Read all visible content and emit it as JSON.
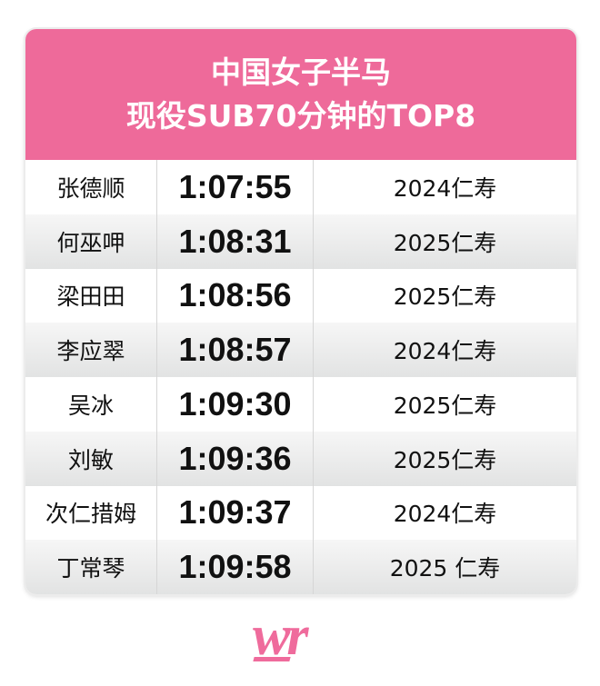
{
  "header": {
    "line1": "中国女子半马",
    "line2": "现役SUB70分钟的TOP8"
  },
  "rows": [
    {
      "name": "张德顺",
      "time": "1:07:55",
      "race": "2024仁寿"
    },
    {
      "name": "何巫呷",
      "time": "1:08:31",
      "race": "2025仁寿"
    },
    {
      "name": "梁田田",
      "time": "1:08:56",
      "race": "2025仁寿"
    },
    {
      "name": "李应翠",
      "time": "1:08:57",
      "race": "2024仁寿"
    },
    {
      "name": "吴冰",
      "time": "1:09:30",
      "race": "2025仁寿"
    },
    {
      "name": "刘敏",
      "time": "1:09:36",
      "race": "2025仁寿"
    },
    {
      "name": "次仁措姆",
      "time": "1:09:37",
      "race": "2024仁寿"
    },
    {
      "name": "丁常琴",
      "time": "1:09:58",
      "race": "2025 仁寿"
    }
  ],
  "logo": {
    "text": "wr"
  },
  "colors": {
    "accent": "#ee6a9a"
  }
}
